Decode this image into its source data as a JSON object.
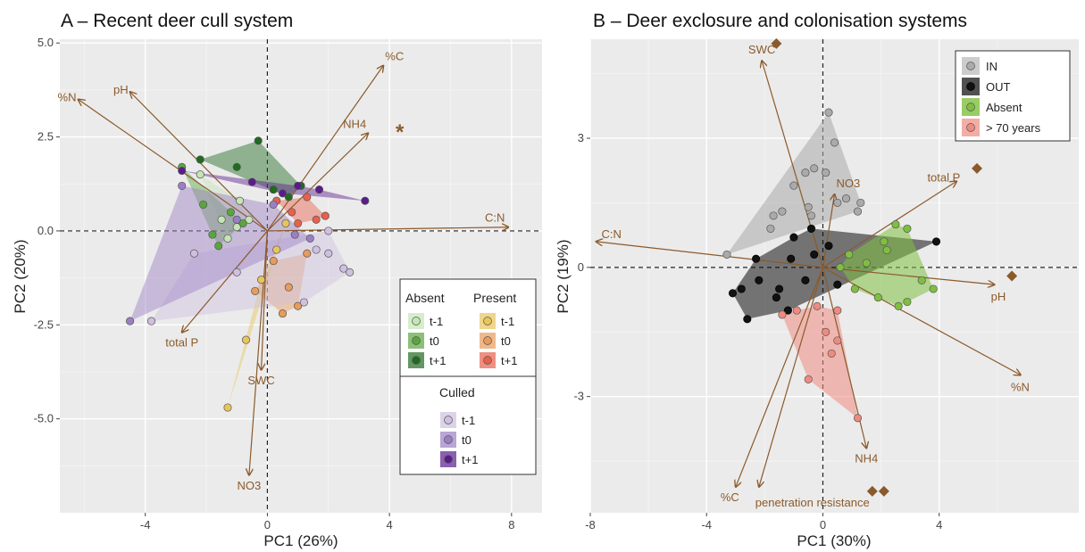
{
  "chart_data": [
    {
      "type": "scatter",
      "title": "A – Recent deer cull system",
      "xlabel": "PC1 (26%)",
      "ylabel": "PC2 (20%)",
      "xlim": [
        -6.8,
        9.0
      ],
      "ylim": [
        -7.5,
        5.1
      ],
      "x_ticks": [
        -4,
        0,
        4,
        8
      ],
      "y_ticks": [
        -5.0,
        -2.5,
        0.0,
        2.5,
        5.0
      ],
      "y_tick_labels": [
        "-5.0",
        "-2.5",
        "0.0",
        "2.5",
        "5.0"
      ],
      "grid": true,
      "legend_position": "right-center",
      "legend_groups": [
        {
          "title": "Absent",
          "entries": [
            "t-1",
            "t0",
            "t+1"
          ]
        },
        {
          "title": "Present",
          "entries": [
            "t-1",
            "t0",
            "t+1"
          ]
        },
        {
          "title": "Culled",
          "entries": [
            "t-1",
            "t0",
            "t+1"
          ]
        }
      ],
      "annotation": "*",
      "vectors": [
        {
          "label": "%C",
          "x": 3.8,
          "y": 4.4
        },
        {
          "label": "NH4",
          "x": 3.3,
          "y": 2.6
        },
        {
          "label": "%N",
          "x": -6.2,
          "y": 3.5
        },
        {
          "label": "pH",
          "x": -4.5,
          "y": 3.7
        },
        {
          "label": "C:N",
          "x": 7.9,
          "y": 0.1
        },
        {
          "label": "total P",
          "x": -2.8,
          "y": -2.7
        },
        {
          "label": "SWC",
          "x": -0.2,
          "y": -3.7
        },
        {
          "label": "NO3",
          "x": -0.6,
          "y": -6.5
        }
      ],
      "series": [
        {
          "name": "Absent t-1",
          "color": "#c5e5b5",
          "points": [
            [
              -2.2,
              1.5
            ],
            [
              -1.5,
              0.3
            ],
            [
              -0.9,
              0.8
            ],
            [
              -1.3,
              -0.2
            ],
            [
              -1.0,
              0.1
            ],
            [
              -0.6,
              0.3
            ]
          ]
        },
        {
          "name": "Absent t0",
          "color": "#5aa63c",
          "points": [
            [
              -2.8,
              1.7
            ],
            [
              -2.1,
              0.7
            ],
            [
              -1.8,
              -0.1
            ],
            [
              -1.2,
              0.5
            ],
            [
              -1.6,
              -0.4
            ],
            [
              -0.8,
              0.2
            ]
          ]
        },
        {
          "name": "Absent t+1",
          "color": "#1f6b1f",
          "points": [
            [
              -2.2,
              1.9
            ],
            [
              -0.3,
              2.4
            ],
            [
              -1.0,
              1.7
            ],
            [
              0.2,
              1.1
            ],
            [
              0.7,
              0.9
            ],
            [
              1.1,
              1.2
            ]
          ]
        },
        {
          "name": "Present t-1",
          "color": "#e8c55a",
          "points": [
            [
              -1.3,
              -4.7
            ],
            [
              -0.7,
              -2.9
            ],
            [
              -0.2,
              -1.3
            ],
            [
              0.3,
              -0.5
            ],
            [
              0.6,
              0.2
            ]
          ]
        },
        {
          "name": "Present t0",
          "color": "#e89b5a",
          "points": [
            [
              -0.4,
              -1.6
            ],
            [
              0.2,
              -0.8
            ],
            [
              0.7,
              -1.5
            ],
            [
              1.3,
              -0.6
            ],
            [
              1.0,
              -2.0
            ],
            [
              0.5,
              -2.2
            ]
          ]
        },
        {
          "name": "Present t+1",
          "color": "#e8604c",
          "points": [
            [
              0.3,
              0.8
            ],
            [
              0.8,
              0.5
            ],
            [
              1.3,
              0.9
            ],
            [
              1.6,
              0.3
            ],
            [
              1.0,
              0.2
            ],
            [
              1.9,
              0.4
            ]
          ]
        },
        {
          "name": "Culled t-1",
          "color": "#cfc0e0",
          "points": [
            [
              -3.8,
              -2.4
            ],
            [
              -2.4,
              -0.6
            ],
            [
              -1.0,
              -1.1
            ],
            [
              1.2,
              -1.9
            ],
            [
              2.0,
              -0.6
            ],
            [
              2.5,
              -1.0
            ],
            [
              2.7,
              -1.1
            ],
            [
              2.0,
              0.0
            ],
            [
              1.6,
              -0.5
            ]
          ]
        },
        {
          "name": "Culled t0",
          "color": "#9b7fc4",
          "points": [
            [
              -4.5,
              -2.4
            ],
            [
              -2.8,
              1.2
            ],
            [
              -1.0,
              0.3
            ],
            [
              0.2,
              0.7
            ],
            [
              0.9,
              -0.1
            ],
            [
              1.4,
              -0.2
            ]
          ]
        },
        {
          "name": "Culled t+1",
          "color": "#5a1c8c",
          "points": [
            [
              -2.8,
              1.6
            ],
            [
              -0.5,
              1.3
            ],
            [
              0.5,
              1.0
            ],
            [
              1.0,
              1.2
            ],
            [
              1.7,
              1.1
            ],
            [
              3.2,
              0.8
            ]
          ]
        }
      ]
    },
    {
      "type": "scatter",
      "title": "B – Deer exclosure and colonisation systems",
      "xlabel": "PC1 (30%)",
      "ylabel": "PC2 (19%)",
      "xlim": [
        -8.0,
        8.8
      ],
      "ylim": [
        -5.7,
        5.3
      ],
      "x_ticks": [
        -8,
        -4,
        0,
        4
      ],
      "y_ticks": [
        -3,
        0,
        3
      ],
      "y_tick_labels": [
        "-3",
        "0",
        "3"
      ],
      "grid": true,
      "legend_position": "top-right",
      "legend_entries": [
        "IN",
        "OUT",
        "Absent",
        "> 70 years"
      ],
      "vectors": [
        {
          "label": "SWC",
          "x": -2.1,
          "y": 4.8
        },
        {
          "label": "total P",
          "x": 4.6,
          "y": 2.0
        },
        {
          "label": "C:N",
          "x": -7.8,
          "y": 0.6
        },
        {
          "label": "NO3",
          "x": 0.4,
          "y": 1.7
        },
        {
          "label": "pH",
          "x": 5.9,
          "y": -0.4
        },
        {
          "label": "%N",
          "x": 6.8,
          "y": -2.5
        },
        {
          "label": "NH4",
          "x": 1.5,
          "y": -4.2
        },
        {
          "label": "%C",
          "x": -3.0,
          "y": -5.1
        },
        {
          "label": "penetration resistance",
          "x": -2.2,
          "y": -5.1
        }
      ],
      "significance_markers": [
        {
          "vector": "SWC",
          "x": -1.6,
          "y": 5.2
        },
        {
          "vector": "total P",
          "x": 5.3,
          "y": 2.3
        },
        {
          "vector": "pH",
          "x": 6.5,
          "y": -0.2
        },
        {
          "vector": "penetration resistance",
          "x": 1.7,
          "y": -5.2
        },
        {
          "vector": "penetration resistance",
          "x": 2.1,
          "y": -5.2
        }
      ],
      "series": [
        {
          "name": "IN",
          "color": "#aaaaaa",
          "points": [
            [
              0.2,
              3.6
            ],
            [
              0.4,
              2.9
            ],
            [
              -0.3,
              2.3
            ],
            [
              0.1,
              2.2
            ],
            [
              -0.6,
              2.2
            ],
            [
              -1.0,
              1.9
            ],
            [
              1.3,
              1.5
            ],
            [
              1.2,
              1.3
            ],
            [
              -1.7,
              1.2
            ],
            [
              -1.4,
              1.3
            ],
            [
              -0.5,
              1.4
            ],
            [
              0.8,
              1.6
            ],
            [
              0.5,
              1.5
            ],
            [
              -3.3,
              0.3
            ],
            [
              -0.4,
              1.2
            ],
            [
              -1.8,
              0.9
            ]
          ]
        },
        {
          "name": "OUT",
          "color": "#111111",
          "points": [
            [
              -3.1,
              -0.6
            ],
            [
              -2.6,
              -1.2
            ],
            [
              -2.2,
              -0.3
            ],
            [
              -1.6,
              -0.7
            ],
            [
              -2.3,
              0.2
            ],
            [
              -1.1,
              0.2
            ],
            [
              -0.3,
              0.3
            ],
            [
              -0.6,
              -0.3
            ],
            [
              0.5,
              -0.4
            ],
            [
              3.9,
              0.6
            ],
            [
              -0.4,
              0.9
            ],
            [
              -1.0,
              0.7
            ],
            [
              -1.5,
              -0.5
            ],
            [
              -2.8,
              -0.5
            ],
            [
              0.2,
              0.5
            ],
            [
              -1.2,
              -1.0
            ]
          ]
        },
        {
          "name": "Absent",
          "color": "#7fbf3f",
          "points": [
            [
              0.9,
              0.3
            ],
            [
              1.5,
              0.1
            ],
            [
              2.2,
              0.4
            ],
            [
              2.5,
              1.0
            ],
            [
              2.1,
              0.6
            ],
            [
              3.8,
              -0.5
            ],
            [
              2.9,
              -0.8
            ],
            [
              2.6,
              -0.9
            ],
            [
              1.9,
              -0.7
            ],
            [
              1.1,
              -0.5
            ],
            [
              0.6,
              0.0
            ],
            [
              2.9,
              0.9
            ],
            [
              3.4,
              -0.3
            ]
          ]
        },
        {
          "name": "> 70 years",
          "color": "#ee8a80",
          "points": [
            [
              -1.4,
              -1.1
            ],
            [
              -0.2,
              -0.9
            ],
            [
              0.5,
              -1.0
            ],
            [
              0.1,
              -1.5
            ],
            [
              0.5,
              -1.7
            ],
            [
              0.3,
              -2.0
            ],
            [
              -0.5,
              -2.6
            ],
            [
              1.2,
              -3.5
            ],
            [
              -0.9,
              -1.0
            ]
          ]
        }
      ]
    }
  ]
}
